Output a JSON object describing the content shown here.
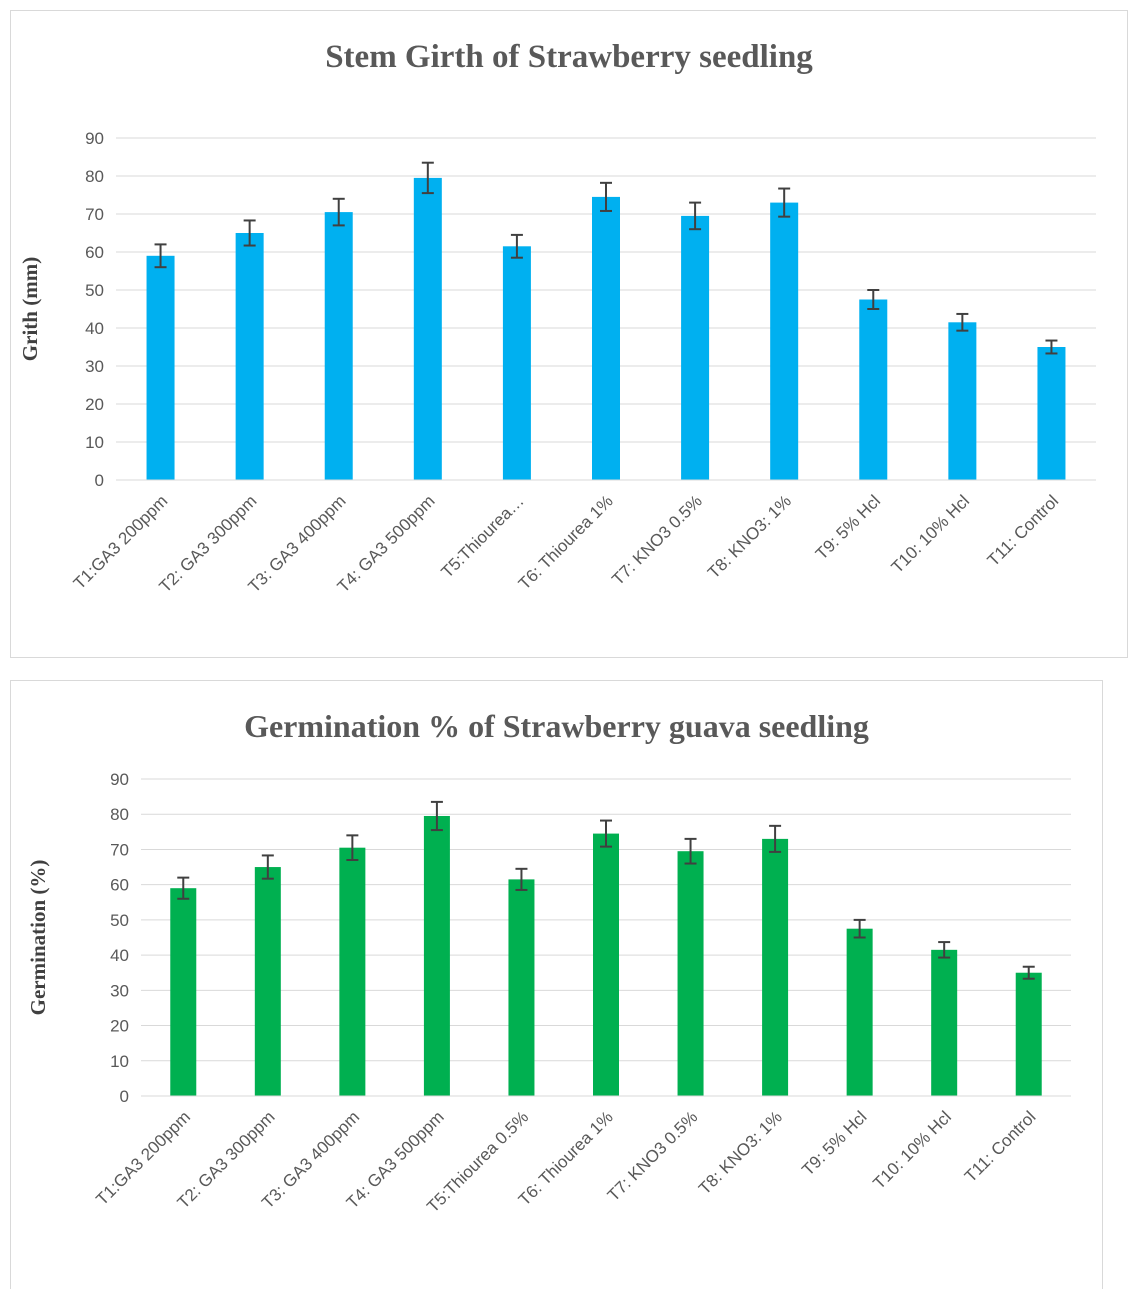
{
  "chart_data": [
    {
      "type": "bar",
      "title": "Stem Girth of Strawberry seedling",
      "xlabel": "",
      "ylabel": "Grith (mm)",
      "ylim": [
        0,
        90
      ],
      "yticks": [
        0,
        10,
        20,
        30,
        40,
        50,
        60,
        70,
        80,
        90
      ],
      "grid": true,
      "bar_color": "#00b0f0",
      "error_bar_color": "#404040",
      "categories": [
        "T1:GA3 200ppm",
        "T2: GA3 300ppm",
        "T3: GA3 400ppm",
        "T4: GA3 500ppm",
        "T5:Thiourea…",
        "T6: Thiourea 1%",
        "T7: KNO3 0.5%",
        "T8: KNO3: 1%",
        "T9: 5% Hcl",
        "T10: 10% Hcl",
        "T11: Control"
      ],
      "values": [
        59,
        65,
        70.5,
        79.5,
        61.5,
        74.5,
        69.5,
        73,
        47.5,
        41.5,
        35
      ],
      "errors": [
        3,
        3.3,
        3.5,
        4,
        3,
        3.7,
        3.5,
        3.7,
        2.5,
        2.2,
        1.7
      ]
    },
    {
      "type": "bar",
      "title": "Germination % of Strawberry guava seedling",
      "xlabel": "",
      "ylabel": "Germination (%)",
      "ylim": [
        0,
        90
      ],
      "yticks": [
        0,
        10,
        20,
        30,
        40,
        50,
        60,
        70,
        80,
        90
      ],
      "grid": true,
      "bar_color": "#00b050",
      "error_bar_color": "#404040",
      "categories": [
        "T1:GA3 200ppm",
        "T2: GA3 300ppm",
        "T3: GA3 400ppm",
        "T4: GA3 500ppm",
        "T5:Thiourea 0.5%",
        "T6: Thiourea 1%",
        "T7: KNO3 0.5%",
        "T8: KNO3: 1%",
        "T9: 5% Hcl",
        "T10: 10% Hcl",
        "T11: Control"
      ],
      "values": [
        59,
        65,
        70.5,
        79.5,
        61.5,
        74.5,
        69.5,
        73,
        47.5,
        41.5,
        35
      ],
      "errors": [
        3,
        3.3,
        3.5,
        4,
        3,
        3.7,
        3.5,
        3.7,
        2.5,
        2.2,
        1.7
      ]
    }
  ]
}
